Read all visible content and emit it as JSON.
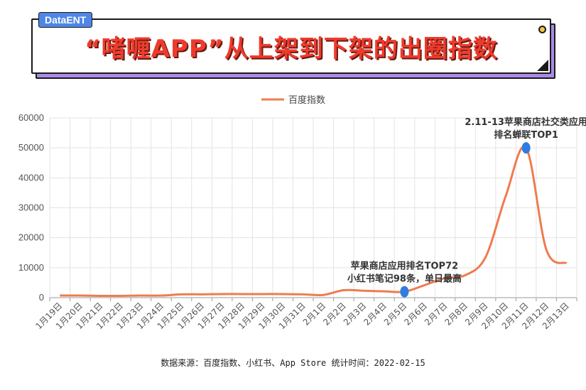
{
  "brand": "DataENT",
  "title": "“啫喱APP”从上架到下架的出圈指数",
  "source": "数据来源：百度指数、小红书、App Store 统计时间：2022-02-15",
  "colors": {
    "line": "#ef7b4f",
    "marker": "#2f7de1",
    "grid": "#e3e3e3"
  },
  "chart_data": {
    "type": "line",
    "categories": [
      "1月19日",
      "1月20日",
      "1月21日",
      "1月22日",
      "1月23日",
      "1月24日",
      "1月25日",
      "1月26日",
      "1月27日",
      "1月28日",
      "1月29日",
      "1月30日",
      "1月31日",
      "2月1日",
      "2月2日",
      "2月3日",
      "2月4日",
      "2月5日",
      "2月6日",
      "2月7日",
      "2月8日",
      "2月9日",
      "2月10日",
      "2月11日",
      "2月12日",
      "2月13日"
    ],
    "series": [
      {
        "name": "百度指数",
        "values": [
          700,
          700,
          600,
          600,
          700,
          700,
          1100,
          1100,
          1200,
          1200,
          1200,
          1200,
          1100,
          900,
          2500,
          2300,
          2100,
          2000,
          4200,
          6500,
          7500,
          13500,
          34000,
          50000,
          16000,
          11500
        ]
      }
    ],
    "ylim": [
      0,
      60000
    ],
    "yticks": [
      "0",
      "10000",
      "20000",
      "30000",
      "40000",
      "50000",
      "60000"
    ],
    "grid": true,
    "legend": "top-center",
    "annotations": [
      {
        "category": "2月5日",
        "value": 2000,
        "lines": [
          "苹果商店应用排名TOP72",
          "小红书笔记98条，单日最高"
        ]
      },
      {
        "category": "2月11日",
        "value": 50000,
        "lines": [
          "2.11-13苹果商店社交类应用",
          "排名蝉联TOP1"
        ]
      }
    ]
  }
}
